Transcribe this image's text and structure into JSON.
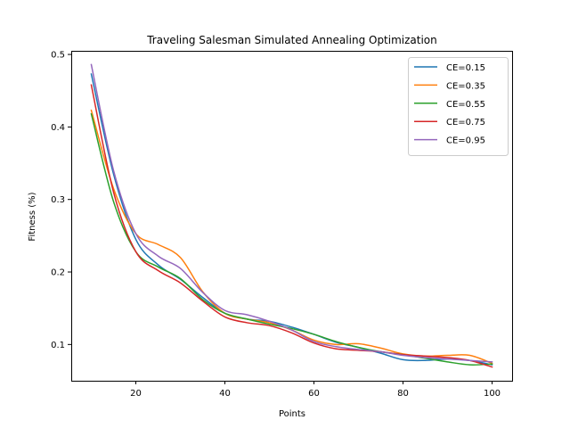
{
  "chart_data": {
    "type": "line",
    "title": "Traveling Salesman Simulated Annealing Optimization",
    "xlabel": "Points",
    "ylabel": "Fitness (%)",
    "xlim": [
      5.5,
      104.5
    ],
    "ylim": [
      0.05,
      0.505
    ],
    "xticks": [
      20,
      40,
      60,
      80,
      100
    ],
    "yticks": [
      0.1,
      0.2,
      0.3,
      0.4,
      0.5
    ],
    "legend_position": "top-right",
    "grid": false,
    "x": [
      10,
      15,
      20,
      25,
      30,
      35,
      40,
      45,
      50,
      55,
      60,
      65,
      70,
      75,
      80,
      85,
      90,
      95,
      100
    ],
    "series": [
      {
        "name": "CE=0.15",
        "color": "#1f77b4",
        "values": [
          0.473,
          0.335,
          0.245,
          0.21,
          0.19,
          0.165,
          0.143,
          0.135,
          0.132,
          0.124,
          0.114,
          0.103,
          0.096,
          0.088,
          0.079,
          0.078,
          0.08,
          0.078,
          0.072
        ]
      },
      {
        "name": "CE=0.35",
        "color": "#ff7f0e",
        "values": [
          0.423,
          0.315,
          0.253,
          0.238,
          0.22,
          0.173,
          0.143,
          0.135,
          0.13,
          0.12,
          0.106,
          0.1,
          0.101,
          0.095,
          0.087,
          0.084,
          0.085,
          0.085,
          0.074
        ]
      },
      {
        "name": "CE=0.55",
        "color": "#2ca02c",
        "values": [
          0.418,
          0.297,
          0.228,
          0.207,
          0.191,
          0.162,
          0.143,
          0.135,
          0.128,
          0.122,
          0.114,
          0.104,
          0.096,
          0.09,
          0.086,
          0.081,
          0.076,
          0.072,
          0.073
        ]
      },
      {
        "name": "CE=0.75",
        "color": "#d62728",
        "values": [
          0.458,
          0.31,
          0.228,
          0.202,
          0.185,
          0.16,
          0.138,
          0.13,
          0.126,
          0.116,
          0.102,
          0.094,
          0.092,
          0.09,
          0.086,
          0.084,
          0.082,
          0.078,
          0.069
        ]
      },
      {
        "name": "CE=0.95",
        "color": "#9467bd",
        "values": [
          0.486,
          0.34,
          0.253,
          0.222,
          0.205,
          0.172,
          0.147,
          0.141,
          0.132,
          0.12,
          0.104,
          0.097,
          0.093,
          0.09,
          0.085,
          0.082,
          0.08,
          0.078,
          0.076
        ]
      }
    ]
  }
}
